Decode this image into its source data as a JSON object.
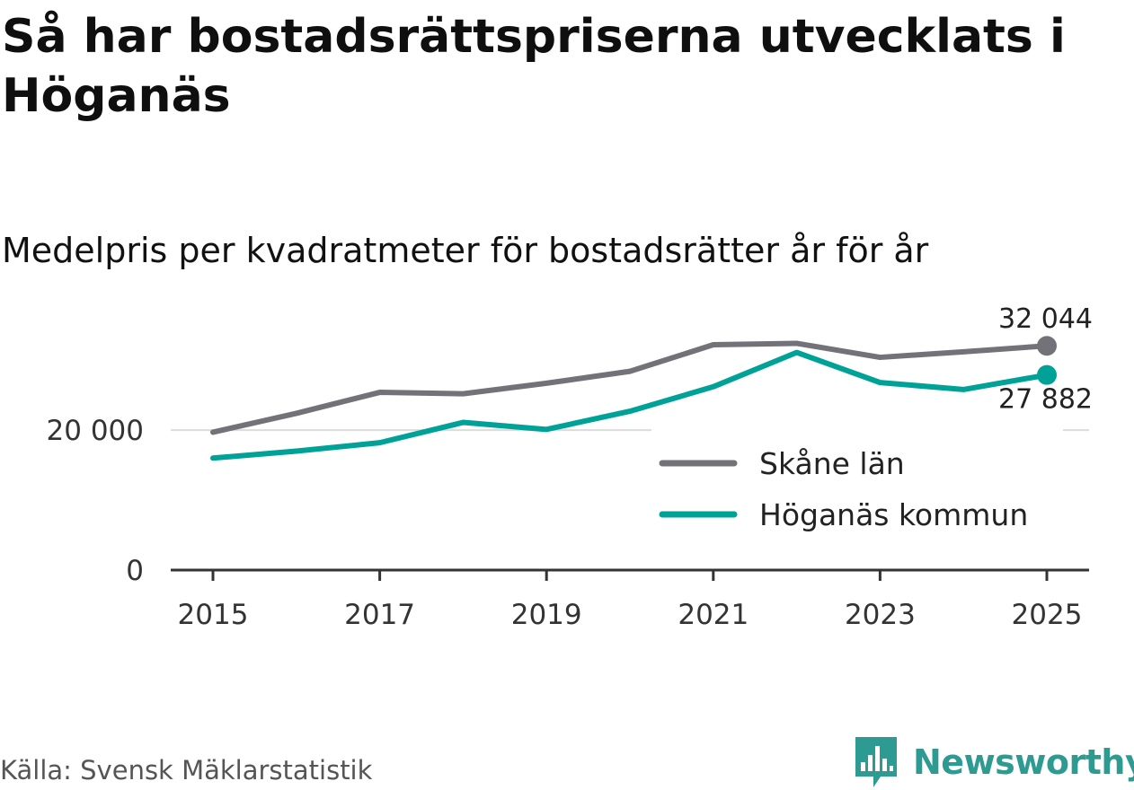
{
  "title": "Så har bostadsrättspriserna utvecklats i Höganäs",
  "subtitle": "Medelpris per kvadratmeter för bostadsrätter år för år",
  "source": "Källa: Svensk Mäklarstatistik",
  "logo": {
    "text": "Newsworthy",
    "icon": "bar-chart-speech-icon",
    "color": "#2e9b93"
  },
  "chart_data": {
    "type": "line",
    "x": [
      2015,
      2016,
      2017,
      2018,
      2019,
      2020,
      2021,
      2022,
      2023,
      2024,
      2025
    ],
    "xticks": [
      "2015",
      "2017",
      "2019",
      "2021",
      "2023",
      "2025"
    ],
    "xtick_values": [
      2015,
      2017,
      2019,
      2021,
      2023,
      2025
    ],
    "yticks": [
      0,
      20000
    ],
    "ytick_labels": [
      "0",
      "20 000"
    ],
    "ylim": [
      0,
      34000
    ],
    "grid": true,
    "legend_position": "bottom-right",
    "series": [
      {
        "name": "Skåne län",
        "color": "#737278",
        "values": [
          19700,
          22400,
          25400,
          25200,
          26700,
          28400,
          32200,
          32400,
          30400,
          31200,
          32044
        ],
        "end_label": "32 044"
      },
      {
        "name": "Höganäs kommun",
        "color": "#00a298",
        "values": [
          16000,
          17000,
          18200,
          21100,
          20100,
          22700,
          26200,
          31100,
          26800,
          25800,
          27882
        ],
        "end_label": "27 882"
      }
    ]
  }
}
